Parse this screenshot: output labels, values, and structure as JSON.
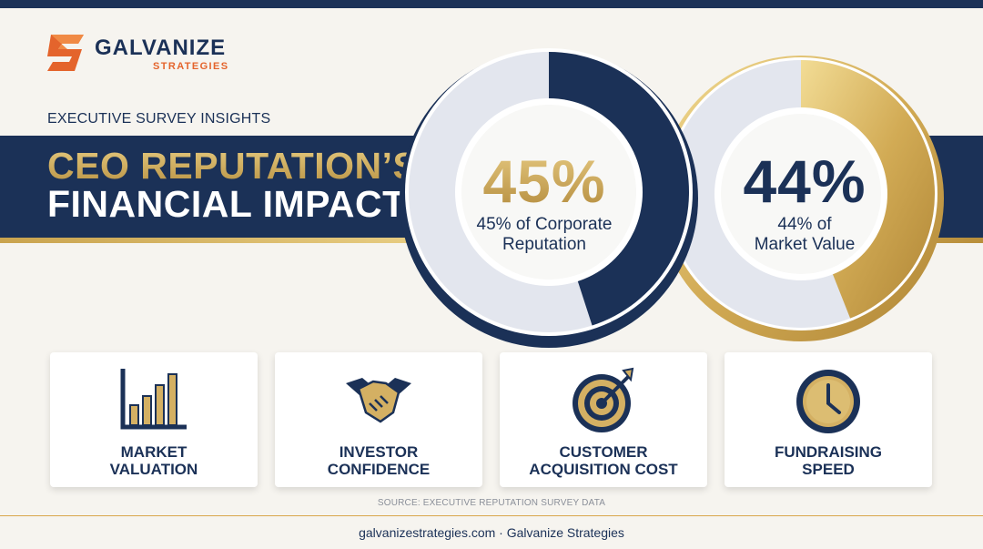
{
  "brand": {
    "name": "GALVANIZE",
    "tagline": "STRATEGIES",
    "colors": {
      "navy": "#1b3157",
      "gold": "#c9a34e",
      "orange": "#e4642c"
    }
  },
  "header": {
    "eyebrow": "EXECUTIVE SURVEY INSIGHTS",
    "title_line1": "CEO REPUTATION’S",
    "title_line2": "FINANCIAL IMPACT"
  },
  "stats": [
    {
      "value": "45%",
      "caption": "45% of Corporate Reputation",
      "percent": 45,
      "ring_color": "#1b3157"
    },
    {
      "value": "44%",
      "caption": "44% of Market Value",
      "percent": 44,
      "ring_color": "#c9a34e"
    }
  ],
  "cards": [
    {
      "icon": "bar-chart-icon",
      "label": "MARKET\nVALUATION"
    },
    {
      "icon": "handshake-icon",
      "label": "INVESTOR\nCONFIDENCE"
    },
    {
      "icon": "target-icon",
      "label": "CUSTOMER\nACQUISITION COST"
    },
    {
      "icon": "clock-icon",
      "label": "FUNDRAISING\nSPEED"
    }
  ],
  "source_note": "SOURCE: EXECUTIVE REPUTATION SURVEY DATA",
  "footer": "galvanizestrategies.com · Galvanize Strategies"
}
